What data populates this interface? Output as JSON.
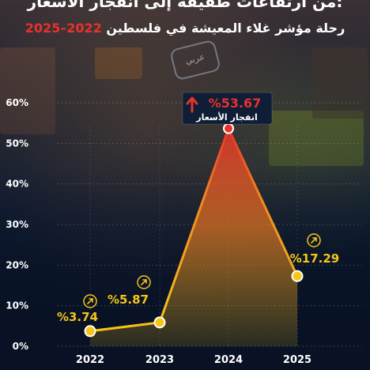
{
  "header": {
    "title": "من ارتفاعات طفيفة إلى انفجار الأسعار:",
    "subtitle_text": "رحلة مؤشر غلاء المعيشة في فلسطين",
    "subtitle_years": "2022–2025"
  },
  "logo_text": "عربي",
  "colors": {
    "line": "#f5c518",
    "peak": "#e8322b",
    "area_top": "#e8322b",
    "area_bottom": "#f5c518",
    "label": "#f5c518",
    "callout_bg": "#0f1e36",
    "axis_text": "#ffffff"
  },
  "chart_data": {
    "type": "area",
    "categories": [
      "2022",
      "2023",
      "2024",
      "2025"
    ],
    "series": [
      {
        "values": [
          3.74,
          5.87,
          53.67,
          17.29
        ]
      }
    ],
    "data_labels": [
      "%3.74",
      "%5.87",
      "%53.67",
      "%17.29"
    ],
    "peak_annotation": "انفجار الأسعار",
    "yticks": [
      "0%",
      "10%",
      "20%",
      "30%",
      "40%",
      "50%",
      "60%"
    ],
    "ylim": [
      0,
      60
    ],
    "grid": true,
    "title": "من ارتفاعات طفيفة إلى انفجار الأسعار:",
    "subtitle": "رحلة مؤشر غلاء المعيشة في فلسطين 2022–2025"
  }
}
